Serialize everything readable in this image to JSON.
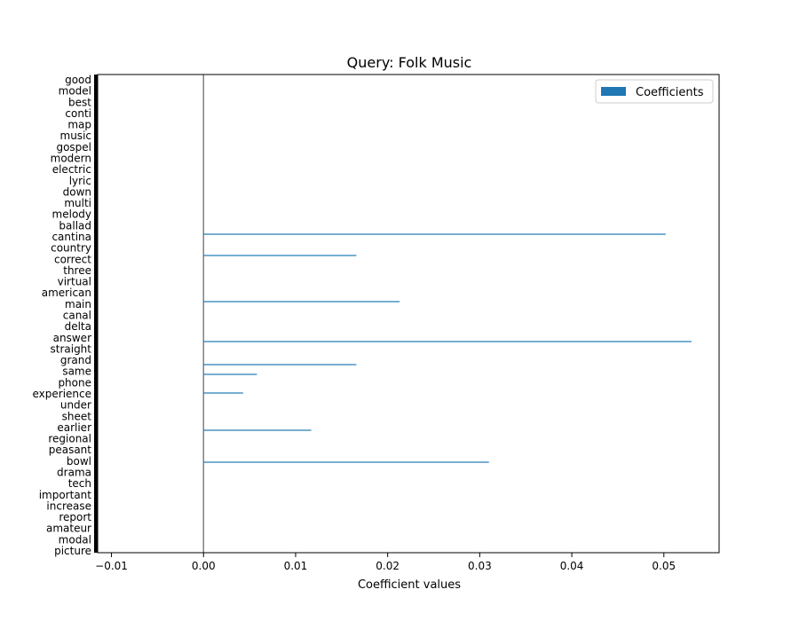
{
  "chart_data": {
    "type": "bar",
    "orientation": "horizontal",
    "title": "Query: Folk Music",
    "xlabel": "Coefficient values",
    "ylabel": "",
    "xlim": [
      -0.0115,
      0.056
    ],
    "xticks": [
      -0.01,
      0.0,
      0.01,
      0.02,
      0.03,
      0.04,
      0.05
    ],
    "xtick_labels": [
      "−0.01",
      "0.00",
      "0.01",
      "0.02",
      "0.03",
      "0.04",
      "0.05"
    ],
    "grid": false,
    "legend": {
      "position": "top-right",
      "entries": [
        "Coefficients"
      ]
    },
    "reference_line_x": 0,
    "bar_color": "#1f77b4",
    "category_count": 400,
    "categories_note": "y tick labels overlap densely and are largely illegible; only partially readable fragments are recorded",
    "readable_categories": [
      "good",
      "model",
      "best",
      "conti",
      "map",
      "music",
      "gospel",
      "modern",
      "electric",
      "lyric",
      "down",
      "multi",
      "melody",
      "ballad",
      "cantina",
      "country",
      "correct",
      "three",
      "virtual",
      "american",
      "main",
      "canal",
      "delta",
      "answer",
      "straight",
      "grand",
      "same",
      "phone",
      "experience",
      "under",
      "sheet",
      "earlier",
      "regional",
      "peasant",
      "bowl",
      "drama",
      "tech",
      "important",
      "increase",
      "report",
      "amateur",
      "modal",
      "picture"
    ],
    "visible_bars": [
      {
        "value": 0.0502
      },
      {
        "value": 0.0166
      },
      {
        "value": 0.0213
      },
      {
        "value": 0.053
      },
      {
        "value": 0.0166
      },
      {
        "value": 0.0058
      },
      {
        "value": 0.0043
      },
      {
        "value": 0.0117
      },
      {
        "value": 0.031
      }
    ],
    "other_bars_value": 0
  }
}
